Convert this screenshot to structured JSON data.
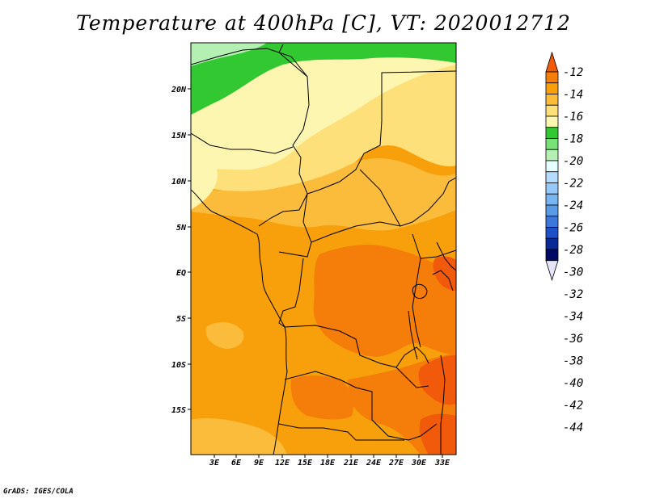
{
  "title": "Temperature at 400hPa [C], VT: 2020012712",
  "credit": "GrADS: IGES/COLA",
  "axes": {
    "lon_labels": [
      "3E",
      "6E",
      "9E",
      "12E",
      "15E",
      "18E",
      "21E",
      "24E",
      "27E",
      "30E",
      "33E"
    ],
    "lat_labels": [
      "20N",
      "15N",
      "10N",
      "5N",
      "EQ",
      "5S",
      "10S",
      "15S"
    ]
  },
  "colorbar": {
    "labels": [
      "-12",
      "-14",
      "-16",
      "-18",
      "-20",
      "-22",
      "-24",
      "-26",
      "-28",
      "-30",
      "-32",
      "-34",
      "-36",
      "-38",
      "-40",
      "-42",
      "-44"
    ],
    "colors": [
      "#f05a0a",
      "#f57d0a",
      "#f8a00c",
      "#fbbc3c",
      "#fde07a",
      "#fdf6b0",
      "#32c832",
      "#78e178",
      "#b4f0b4",
      "#e6ffff",
      "#b4dcff",
      "#96c8fa",
      "#78b4f0",
      "#5a9be6",
      "#3c78dc",
      "#1e50c8",
      "#0a2896",
      "#000a64",
      "#e6e6fa"
    ]
  },
  "fields": {
    "green_dark": "#32c832",
    "green_light": "#b4f0b4",
    "yellow_pale": "#fdf6b0",
    "yellow": "#fde07a",
    "orange_light": "#fbbc3c",
    "orange": "#f8a00c",
    "orange_dark": "#f57d0a",
    "red_orange": "#f05a0a"
  }
}
